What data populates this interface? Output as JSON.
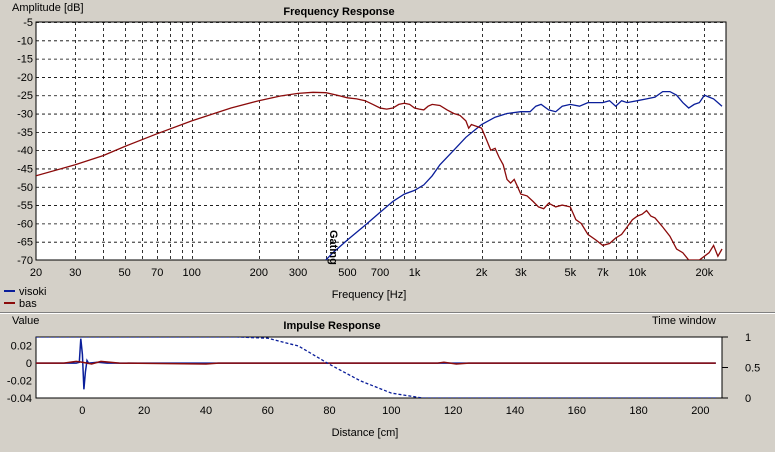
{
  "colors": {
    "background": "#d4d0c8",
    "plot_background": "#ffffff",
    "grid": "#000000",
    "visoki": "#0a1e9a",
    "bas": "#8b0b0b",
    "gating": "#1a1a9a"
  },
  "chart_data": [
    {
      "type": "line",
      "title": "Frequency Response",
      "xlabel": "Frequency [Hz]",
      "ylabel": "Amplitude [dB]",
      "xscale": "log",
      "xlim": [
        20,
        25000
      ],
      "ylim": [
        -70,
        -5
      ],
      "grid": true,
      "legend_position": "bottom-left",
      "x_tick_labels": [
        {
          "v": 20,
          "t": "20"
        },
        {
          "v": 30,
          "t": "30"
        },
        {
          "v": 50,
          "t": "50"
        },
        {
          "v": 70,
          "t": "70"
        },
        {
          "v": 100,
          "t": "100"
        },
        {
          "v": 200,
          "t": "200"
        },
        {
          "v": 300,
          "t": "300"
        },
        {
          "v": 500,
          "t": "500"
        },
        {
          "v": 700,
          "t": "700"
        },
        {
          "v": 1000,
          "t": "1k"
        },
        {
          "v": 2000,
          "t": "2k"
        },
        {
          "v": 3000,
          "t": "3k"
        },
        {
          "v": 5000,
          "t": "5k"
        },
        {
          "v": 7000,
          "t": "7k"
        },
        {
          "v": 10000,
          "t": "10k"
        },
        {
          "v": 20000,
          "t": "20k"
        }
      ],
      "y_ticks": [
        -5,
        -10,
        -15,
        -20,
        -25,
        -30,
        -35,
        -40,
        -45,
        -50,
        -55,
        -60,
        -65,
        -70
      ],
      "annotation": "Gating",
      "series": [
        {
          "name": "visoki",
          "color": "#0a1e9a",
          "points": [
            [
              400,
              -70
            ],
            [
              430,
              -68
            ],
            [
              500,
              -64.5
            ],
            [
              600,
              -60.5
            ],
            [
              700,
              -57
            ],
            [
              800,
              -54
            ],
            [
              900,
              -52
            ],
            [
              1000,
              -51
            ],
            [
              1100,
              -49.5
            ],
            [
              1200,
              -47
            ],
            [
              1300,
              -44
            ],
            [
              1500,
              -40
            ],
            [
              1700,
              -36.5
            ],
            [
              2000,
              -33
            ],
            [
              2300,
              -31
            ],
            [
              2600,
              -30
            ],
            [
              3000,
              -29.5
            ],
            [
              3300,
              -29.5
            ],
            [
              3500,
              -28
            ],
            [
              3700,
              -27.5
            ],
            [
              4000,
              -29
            ],
            [
              4300,
              -29.5
            ],
            [
              4600,
              -28
            ],
            [
              5000,
              -27.5
            ],
            [
              5500,
              -28
            ],
            [
              6000,
              -27
            ],
            [
              7000,
              -27
            ],
            [
              7500,
              -26.5
            ],
            [
              8000,
              -28
            ],
            [
              8500,
              -26.5
            ],
            [
              9000,
              -27
            ],
            [
              10000,
              -26.5
            ],
            [
              11000,
              -26
            ],
            [
              12000,
              -25.5
            ],
            [
              13000,
              -24
            ],
            [
              14000,
              -24
            ],
            [
              15000,
              -25
            ],
            [
              16000,
              -27
            ],
            [
              17000,
              -28.5
            ],
            [
              18000,
              -27.5
            ],
            [
              19000,
              -27
            ],
            [
              20000,
              -25
            ],
            [
              21000,
              -25.5
            ],
            [
              22000,
              -26
            ],
            [
              23000,
              -27
            ],
            [
              24000,
              -28
            ]
          ]
        },
        {
          "name": "bas",
          "color": "#8b0b0b",
          "points": [
            [
              20,
              -47
            ],
            [
              30,
              -44
            ],
            [
              40,
              -41.5
            ],
            [
              50,
              -39
            ],
            [
              70,
              -35.5
            ],
            [
              100,
              -32
            ],
            [
              150,
              -28.5
            ],
            [
              200,
              -26.5
            ],
            [
              250,
              -25.2
            ],
            [
              300,
              -24.5
            ],
            [
              350,
              -24.2
            ],
            [
              400,
              -24.3
            ],
            [
              450,
              -25
            ],
            [
              500,
              -25.7
            ],
            [
              550,
              -26
            ],
            [
              600,
              -26.5
            ],
            [
              650,
              -27.5
            ],
            [
              700,
              -28.5
            ],
            [
              750,
              -28.8
            ],
            [
              800,
              -28.5
            ],
            [
              850,
              -27.5
            ],
            [
              900,
              -27.2
            ],
            [
              950,
              -27.5
            ],
            [
              1000,
              -28.5
            ],
            [
              1050,
              -28.8
            ],
            [
              1100,
              -29
            ],
            [
              1150,
              -28
            ],
            [
              1200,
              -27.5
            ],
            [
              1300,
              -27.8
            ],
            [
              1400,
              -29
            ],
            [
              1500,
              -30
            ],
            [
              1600,
              -30.5
            ],
            [
              1700,
              -32
            ],
            [
              1750,
              -34
            ],
            [
              1800,
              -33
            ],
            [
              1900,
              -33.5
            ],
            [
              2000,
              -34
            ],
            [
              2100,
              -37
            ],
            [
              2200,
              -40
            ],
            [
              2300,
              -39.5
            ],
            [
              2400,
              -42
            ],
            [
              2500,
              -44
            ],
            [
              2600,
              -48
            ],
            [
              2700,
              -49
            ],
            [
              2800,
              -48
            ],
            [
              2900,
              -50
            ],
            [
              3000,
              -52
            ],
            [
              3200,
              -52.5
            ],
            [
              3400,
              -54
            ],
            [
              3600,
              -55.5
            ],
            [
              3800,
              -56
            ],
            [
              4000,
              -54.5
            ],
            [
              4300,
              -55.5
            ],
            [
              4600,
              -55
            ],
            [
              5000,
              -55.5
            ],
            [
              5300,
              -59
            ],
            [
              5600,
              -60
            ],
            [
              6000,
              -63
            ],
            [
              6500,
              -64.5
            ],
            [
              7000,
              -66
            ],
            [
              7500,
              -65.5
            ],
            [
              8000,
              -64
            ],
            [
              8500,
              -63
            ],
            [
              9000,
              -61
            ],
            [
              9500,
              -59
            ],
            [
              10000,
              -58
            ],
            [
              10500,
              -57.5
            ],
            [
              11000,
              -56.5
            ],
            [
              11500,
              -58
            ],
            [
              12000,
              -58.5
            ],
            [
              13000,
              -61
            ],
            [
              14000,
              -63.5
            ],
            [
              15000,
              -67
            ],
            [
              16000,
              -68
            ],
            [
              17000,
              -70
            ],
            [
              19000,
              -70
            ],
            [
              21000,
              -68
            ],
            [
              22000,
              -66
            ],
            [
              23000,
              -69
            ],
            [
              24000,
              -67
            ]
          ]
        }
      ]
    },
    {
      "type": "line",
      "title": "Impulse Response",
      "xlabel": "Distance [cm]",
      "ylabel": "Value",
      "y2label": "Time window",
      "xlim": [
        -15,
        207
      ],
      "ylim": [
        -0.04,
        0.03
      ],
      "y2lim": [
        0,
        1
      ],
      "grid": false,
      "x_ticks": [
        0,
        20,
        40,
        60,
        80,
        100,
        120,
        140,
        160,
        180,
        200
      ],
      "y_tick_labels": [
        {
          "v": 0.02,
          "t": "0.02"
        },
        {
          "v": 0,
          "t": "0"
        },
        {
          "v": -0.02,
          "t": "-0.02"
        },
        {
          "v": -0.04,
          "t": "-0.04"
        }
      ],
      "y2_ticks": [
        1,
        0.5,
        0
      ],
      "series": [
        {
          "name": "visoki",
          "color": "#0a1e9a",
          "points": [
            [
              -15,
              0
            ],
            [
              -2,
              0
            ],
            [
              -1,
              0.001
            ],
            [
              -0.5,
              0.028
            ],
            [
              0,
              0.01
            ],
            [
              0.5,
              -0.03
            ],
            [
              1,
              -0.01
            ],
            [
              1.5,
              0.003
            ],
            [
              2,
              0
            ],
            [
              5,
              0.001
            ],
            [
              8,
              0
            ],
            [
              120,
              0
            ],
            [
              205,
              0
            ]
          ]
        },
        {
          "name": "bas",
          "color": "#8b0b0b",
          "points": [
            [
              -15,
              0
            ],
            [
              -6,
              0
            ],
            [
              -4,
              0.001
            ],
            [
              -2,
              0.002
            ],
            [
              0,
              0.001
            ],
            [
              3,
              -0.001
            ],
            [
              6,
              0.002
            ],
            [
              9,
              0.001
            ],
            [
              12,
              0
            ],
            [
              40,
              -0.001
            ],
            [
              44,
              0
            ],
            [
              115,
              0
            ],
            [
              117,
              0.001
            ],
            [
              121,
              -0.001
            ],
            [
              125,
              0
            ],
            [
              205,
              0
            ]
          ]
        },
        {
          "name": "Time window",
          "color": "#0a1e9a",
          "axis": "y2",
          "dashed": true,
          "points": [
            [
              -15,
              1
            ],
            [
              0,
              1
            ],
            [
              50,
              1
            ],
            [
              60,
              0.98
            ],
            [
              70,
              0.85
            ],
            [
              80,
              0.55
            ],
            [
              90,
              0.28
            ],
            [
              100,
              0.08
            ],
            [
              110,
              0.0
            ],
            [
              205,
              0
            ]
          ]
        }
      ]
    }
  ]
}
